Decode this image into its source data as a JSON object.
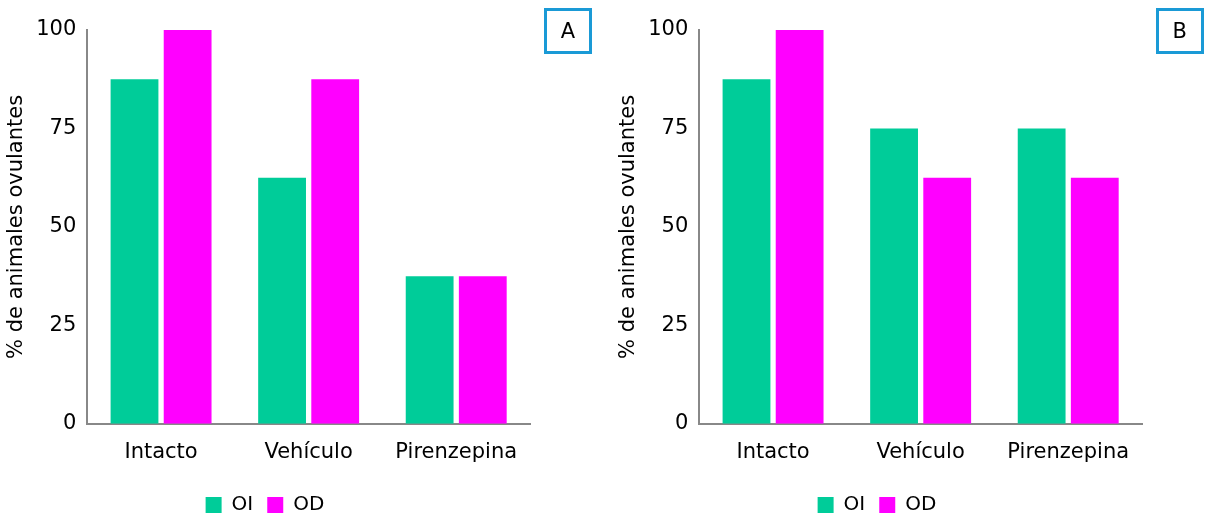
{
  "chart_data": [
    {
      "type": "bar",
      "categories": [
        "Intacto",
        "Vehículo",
        "Pirenzepina"
      ],
      "series": [
        {
          "name": "OI",
          "color": "#00cc99",
          "values": [
            87.5,
            62.5,
            37.5
          ]
        },
        {
          "name": "OD",
          "color": "#ff00ff",
          "values": [
            100,
            87.5,
            37.5
          ]
        }
      ],
      "ylim": [
        0,
        100
      ],
      "yticks": [
        0,
        25,
        50,
        75,
        100
      ],
      "ylabel": "% de animales ovulantes",
      "legend": "bottom",
      "grid": false,
      "annotations": [
        "A"
      ]
    },
    {
      "type": "bar",
      "categories": [
        "Intacto",
        "Vehículo",
        "Pirenzepina"
      ],
      "series": [
        {
          "name": "OI",
          "color": "#00cc99",
          "values": [
            87.5,
            75,
            75
          ]
        },
        {
          "name": "OD",
          "color": "#ff00ff",
          "values": [
            100,
            62.5,
            62.5
          ]
        }
      ],
      "ylim": [
        0,
        100
      ],
      "yticks": [
        0,
        25,
        50,
        75,
        100
      ],
      "ylabel": "% de animales ovulantes",
      "legend": "bottom",
      "grid": false,
      "annotations": [
        "B"
      ]
    }
  ]
}
